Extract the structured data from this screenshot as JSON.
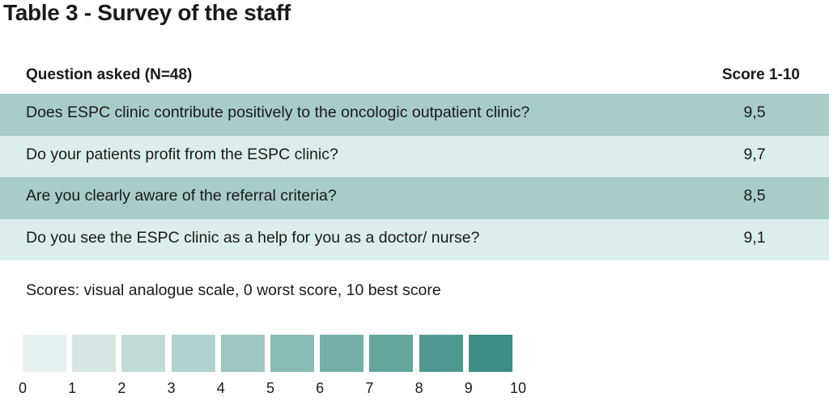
{
  "title": "Table 3 - Survey of the staff",
  "table": {
    "header_question": "Question asked (N=48)",
    "header_score": "Score 1-10",
    "rows": [
      {
        "question": "Does ESPC clinic contribute positively to the oncologic outpatient clinic?",
        "score": "9,5"
      },
      {
        "question": "Do your patients profit from the ESPC clinic?",
        "score": "9,7"
      },
      {
        "question": "Are you clearly aware of the referral criteria?",
        "score": "8,5"
      },
      {
        "question": "Do you see the ESPC clinic as a help for you as a doctor/ nurse?",
        "score": "9,1"
      }
    ]
  },
  "note": "Scores: visual analogue scale, 0 worst score, 10 best score",
  "legend": {
    "ticks": [
      "0",
      "1",
      "2",
      "3",
      "4",
      "5",
      "6",
      "7",
      "8",
      "9",
      "10"
    ],
    "colors": [
      "#e6f2f1",
      "#d3e6e4",
      "#c2dcd9",
      "#b0d2ce",
      "#9ec7c2",
      "#89bbb5",
      "#76b0a9",
      "#64a59d",
      "#4f9990",
      "#3d8e84"
    ]
  }
}
